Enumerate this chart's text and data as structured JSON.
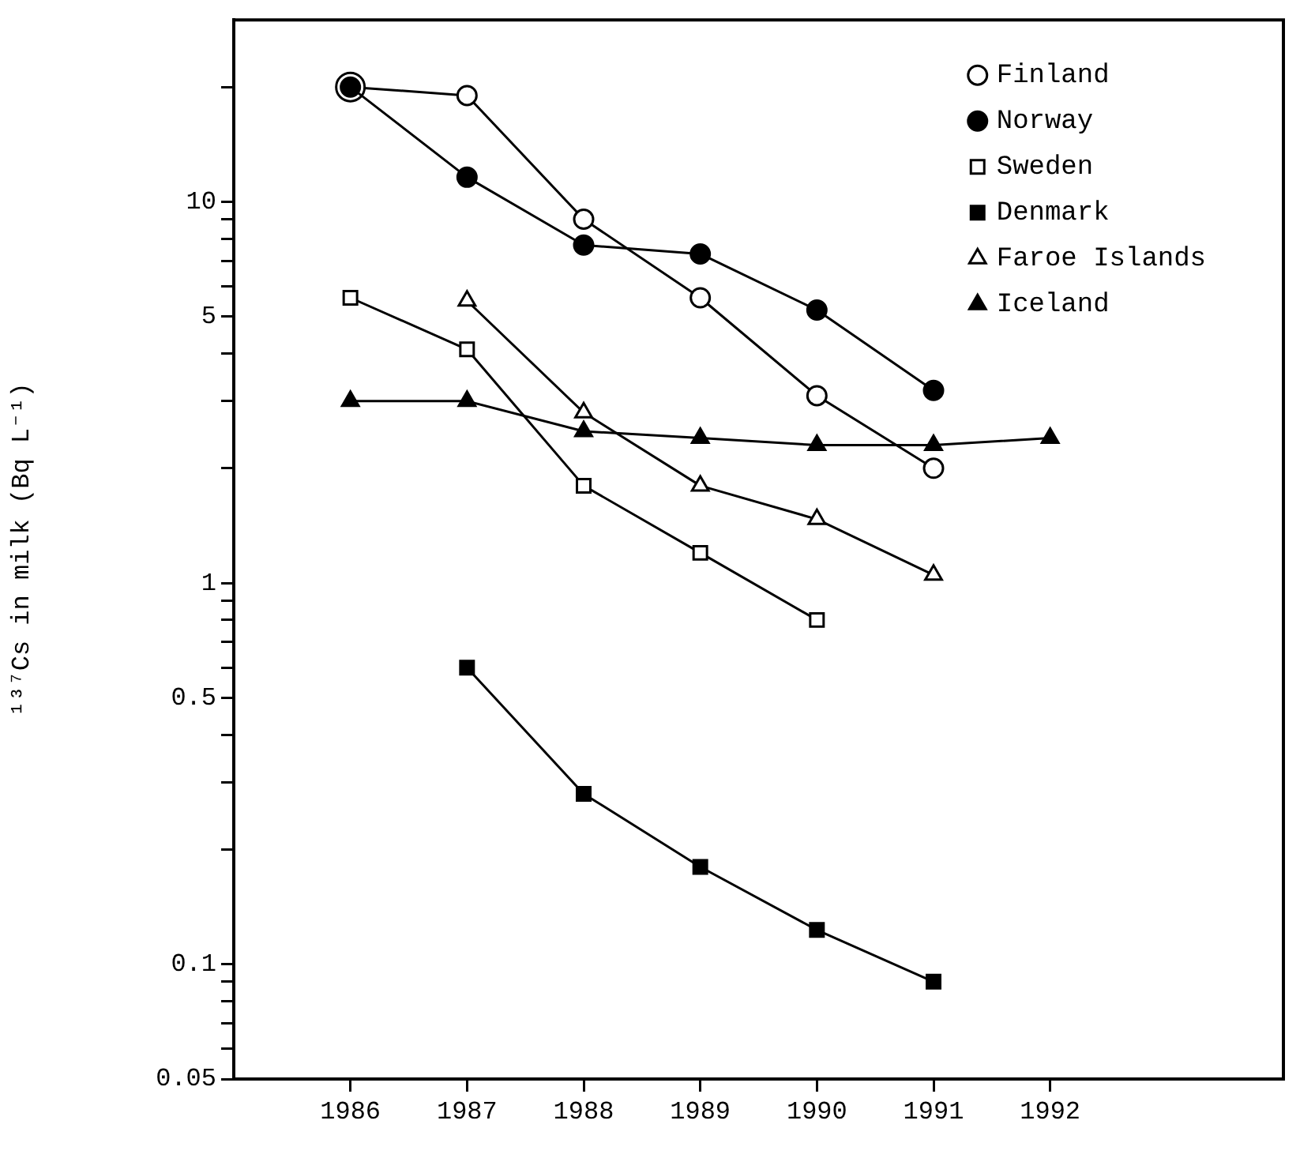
{
  "chart_data": {
    "type": "line",
    "ylabel": "¹³⁷Cs in milk (Bq L⁻¹)",
    "x": [
      1986,
      1987,
      1988,
      1989,
      1990,
      1991,
      1992
    ],
    "log": "y",
    "xlim": [
      1985,
      1994
    ],
    "xticks": [
      1986,
      1987,
      1988,
      1989,
      1990,
      1991,
      1992
    ],
    "ylim": [
      0.05,
      30
    ],
    "yticks": [
      0.05,
      {
        "value": 0.06,
        "label": null
      },
      {
        "value": 0.07,
        "label": null
      },
      {
        "value": 0.08,
        "label": null
      },
      {
        "value": 0.09,
        "label": null
      },
      0.1,
      {
        "value": 0.2,
        "label": null
      },
      {
        "value": 0.3,
        "label": null
      },
      {
        "value": 0.4,
        "label": null
      },
      0.5,
      {
        "value": 0.6,
        "label": null
      },
      {
        "value": 0.7,
        "label": null
      },
      {
        "value": 0.8,
        "label": null
      },
      {
        "value": 0.9,
        "label": null
      },
      1,
      {
        "value": 2,
        "label": null
      },
      {
        "value": 3,
        "label": null
      },
      {
        "value": 4,
        "label": null
      },
      5,
      {
        "value": 6,
        "label": null
      },
      {
        "value": 7,
        "label": null
      },
      {
        "value": 8,
        "label": null
      },
      {
        "value": 9,
        "label": null
      },
      10,
      {
        "value": 20,
        "label": null
      }
    ],
    "grid": false,
    "legend": "top right",
    "line_style": "solid",
    "series": [
      {
        "name": "Finland",
        "color": "#000000",
        "marker": "circle",
        "values": [
          20,
          19,
          9.0,
          5.6,
          3.1,
          2.0,
          null
        ]
      },
      {
        "name": "Norway",
        "color": "#000000",
        "marker": "circle",
        "values": [
          20,
          11.6,
          7.7,
          7.3,
          5.2,
          3.2,
          null
        ]
      },
      {
        "name": "Sweden",
        "color": "#000000",
        "marker": "square",
        "values": [
          5.6,
          4.1,
          1.8,
          1.2,
          0.8,
          null,
          null
        ]
      },
      {
        "name": "Denmark",
        "color": "#000000",
        "marker": "square",
        "values": [
          null,
          0.6,
          0.28,
          0.18,
          0.123,
          0.09,
          null
        ]
      },
      {
        "name": "Faroe Islands",
        "color": "#000000",
        "marker": "triangle",
        "values": [
          null,
          5.5,
          2.8,
          1.8,
          1.47,
          1.05,
          null
        ]
      },
      {
        "name": "Iceland",
        "color": "#000000",
        "marker": "triangle",
        "values": [
          3.0,
          3.0,
          2.5,
          2.4,
          2.3,
          2.3,
          2.4
        ]
      }
    ]
  }
}
